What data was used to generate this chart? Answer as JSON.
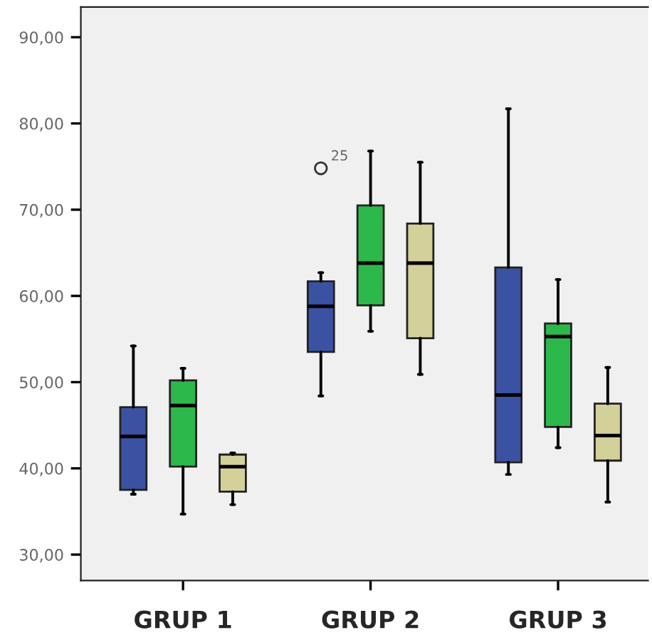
{
  "chart_data": {
    "type": "box",
    "categories": [
      "GRUP 1",
      "GRUP 2",
      "GRUP 3"
    ],
    "series": [
      {
        "color": "#3b52a3",
        "boxes": [
          {
            "low": 37.0,
            "q1": 37.5,
            "median": 43.7,
            "q3": 47.1,
            "high": 54.2
          },
          {
            "low": 48.4,
            "q1": 53.5,
            "median": 58.8,
            "q3": 61.7,
            "high": 62.7,
            "outliers": [
              74.8
            ]
          },
          {
            "low": 39.3,
            "q1": 40.7,
            "median": 48.5,
            "q3": 63.3,
            "high": 81.7
          }
        ]
      },
      {
        "color": "#2cb84a",
        "boxes": [
          {
            "low": 34.7,
            "q1": 40.2,
            "median": 47.3,
            "q3": 50.2,
            "high": 51.6
          },
          {
            "low": 55.9,
            "q1": 58.9,
            "median": 63.8,
            "q3": 70.5,
            "high": 76.8
          },
          {
            "low": 42.4,
            "q1": 44.8,
            "median": 55.3,
            "q3": 56.8,
            "high": 61.9
          }
        ]
      },
      {
        "color": "#d4d09a",
        "boxes": [
          {
            "low": 35.8,
            "q1": 37.3,
            "median": 40.2,
            "q3": 41.6,
            "high": 41.8
          },
          {
            "low": 50.9,
            "q1": 55.1,
            "median": 63.8,
            "q3": 68.4,
            "high": 75.5
          },
          {
            "low": 36.1,
            "q1": 40.9,
            "median": 43.8,
            "q3": 47.5,
            "high": 51.7
          }
        ]
      }
    ],
    "ylim": [
      27,
      93.5
    ],
    "yticks": [
      {
        "value": 30,
        "label": "30,00"
      },
      {
        "value": 40,
        "label": "40,00"
      },
      {
        "value": 50,
        "label": "50,00"
      },
      {
        "value": 60,
        "label": "60,00"
      },
      {
        "value": 70,
        "label": "70,00"
      },
      {
        "value": 80,
        "label": "80,00"
      },
      {
        "value": 90,
        "label": "90,00"
      }
    ],
    "annotations": [
      {
        "text": "25",
        "x": "GRUP 2",
        "y": 74.8
      }
    ]
  }
}
